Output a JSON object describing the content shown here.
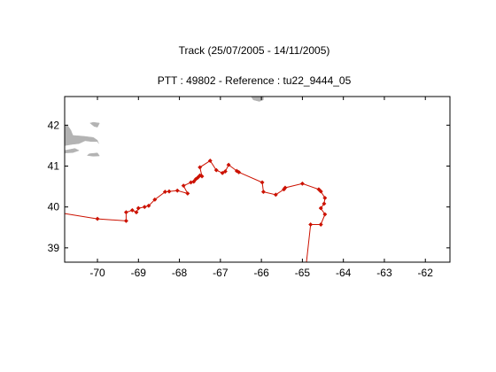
{
  "figure": {
    "title_line1": "Track (25/07/2005 - 14/11/2005)",
    "title_line2": "PTT : 49802 - Reference : tu22_9444_05"
  },
  "chart_data": {
    "type": "map-track",
    "xlim": [
      -70.8,
      -61.4
    ],
    "ylim": [
      38.65,
      42.7
    ],
    "xticks": [
      -70,
      -69,
      -68,
      -67,
      -66,
      -65,
      -64,
      -63,
      -62
    ],
    "yticks": [
      39,
      40,
      41,
      42
    ],
    "colors": {
      "track": "#cc1100",
      "land": "#b3b3b3",
      "axis": "#000000"
    },
    "track": [
      [
        -70.8,
        39.84
      ],
      [
        -70.0,
        39.71
      ],
      [
        -69.3,
        39.66
      ],
      [
        -69.3,
        39.87
      ],
      [
        -69.15,
        39.92
      ],
      [
        -69.05,
        39.87
      ],
      [
        -69.0,
        39.97
      ],
      [
        -68.85,
        40.0
      ],
      [
        -68.75,
        40.03
      ],
      [
        -68.6,
        40.18
      ],
      [
        -68.35,
        40.37
      ],
      [
        -68.25,
        40.38
      ],
      [
        -68.05,
        40.4
      ],
      [
        -67.8,
        40.33
      ],
      [
        -67.9,
        40.52
      ],
      [
        -67.72,
        40.6
      ],
      [
        -67.65,
        40.62
      ],
      [
        -67.6,
        40.68
      ],
      [
        -67.55,
        40.72
      ],
      [
        -67.5,
        40.77
      ],
      [
        -67.45,
        40.75
      ],
      [
        -67.5,
        40.97
      ],
      [
        -67.25,
        41.13
      ],
      [
        -67.1,
        40.9
      ],
      [
        -66.95,
        40.83
      ],
      [
        -66.88,
        40.87
      ],
      [
        -66.8,
        41.03
      ],
      [
        -66.6,
        40.88
      ],
      [
        -66.55,
        40.85
      ],
      [
        -65.98,
        40.6
      ],
      [
        -65.95,
        40.37
      ],
      [
        -65.65,
        40.3
      ],
      [
        -65.45,
        40.43
      ],
      [
        -65.42,
        40.47
      ],
      [
        -65.0,
        40.57
      ],
      [
        -64.6,
        40.43
      ],
      [
        -64.55,
        40.38
      ],
      [
        -64.45,
        40.22
      ],
      [
        -64.47,
        40.08
      ],
      [
        -64.55,
        39.97
      ],
      [
        -64.45,
        39.82
      ],
      [
        -64.55,
        39.57
      ],
      [
        -64.8,
        39.57
      ],
      [
        -64.9,
        38.65
      ]
    ],
    "land": [
      {
        "name": "new-england-coast",
        "polygon": [
          [
            -70.8,
            42.0
          ],
          [
            -70.72,
            41.98
          ],
          [
            -70.65,
            41.88
          ],
          [
            -70.6,
            41.75
          ],
          [
            -70.35,
            41.73
          ],
          [
            -70.1,
            41.7
          ],
          [
            -70.0,
            41.63
          ],
          [
            -69.97,
            41.55
          ],
          [
            -70.0,
            41.6
          ],
          [
            -70.15,
            41.6
          ],
          [
            -70.3,
            41.62
          ],
          [
            -70.45,
            41.55
          ],
          [
            -70.62,
            41.53
          ],
          [
            -70.8,
            41.5
          ]
        ]
      },
      {
        "name": "cape-cod-tip",
        "polygon": [
          [
            -70.0,
            41.95
          ],
          [
            -69.95,
            42.05
          ],
          [
            -70.1,
            42.07
          ],
          [
            -70.18,
            42.05
          ],
          [
            -70.08,
            41.97
          ]
        ]
      },
      {
        "name": "marthas-vineyard",
        "polygon": [
          [
            -70.8,
            41.38
          ],
          [
            -70.55,
            41.43
          ],
          [
            -70.45,
            41.38
          ],
          [
            -70.6,
            41.33
          ],
          [
            -70.8,
            41.32
          ]
        ]
      },
      {
        "name": "nantucket",
        "polygon": [
          [
            -70.2,
            41.3
          ],
          [
            -70.0,
            41.32
          ],
          [
            -69.95,
            41.25
          ],
          [
            -70.1,
            41.24
          ],
          [
            -70.25,
            41.26
          ]
        ]
      },
      {
        "name": "nova-scotia-edge",
        "polygon": [
          [
            -66.25,
            42.7
          ],
          [
            -66.2,
            42.62
          ],
          [
            -66.05,
            42.58
          ],
          [
            -65.95,
            42.62
          ],
          [
            -65.95,
            42.7
          ]
        ]
      }
    ]
  }
}
